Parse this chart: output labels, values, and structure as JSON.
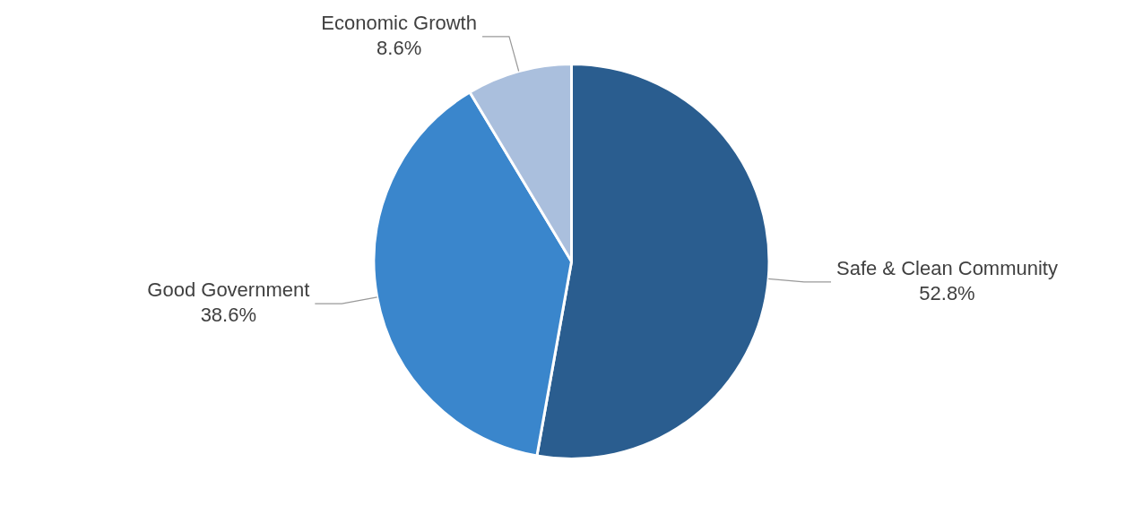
{
  "chart_data": {
    "type": "pie",
    "categories": [
      "Safe & Clean Community",
      "Good Government",
      "Economic Growth"
    ],
    "values": [
      52.8,
      38.6,
      8.6
    ],
    "value_labels": [
      "52.8%",
      "38.6%",
      "8.6%"
    ],
    "colors": [
      "#2a5d8f",
      "#3a86cc",
      "#aabfdd"
    ],
    "legend": false
  }
}
